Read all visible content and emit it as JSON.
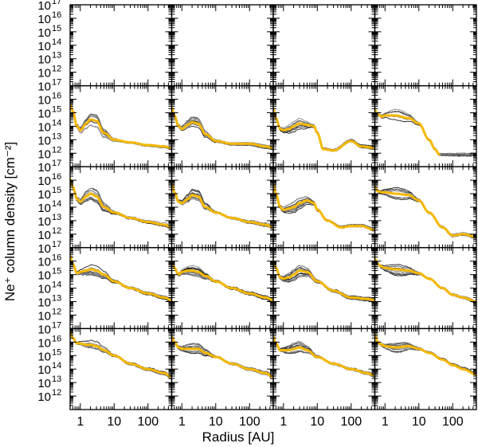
{
  "chart_data": {
    "type": "line",
    "grid": "4 rows x 5 columns of small-multiple panels, shared axes",
    "xlabel": "Radius [AU]",
    "ylabel": "Ne⁺ column density [cm⁻²]",
    "x_scale": "log",
    "y_scale": "log",
    "xlim": [
      0.5,
      500
    ],
    "ylim": [
      100000000000.0,
      1e+17
    ],
    "x_tick_labels": [
      "1",
      "10",
      "100"
    ],
    "x_ticks": [
      1,
      10,
      100
    ],
    "y_tick_labels": [
      "10",
      "10",
      "10",
      "10",
      "10",
      "10"
    ],
    "y_tick_exponents": [
      "12",
      "13",
      "14",
      "15",
      "16",
      "17"
    ],
    "y_ticks": [
      1000000000000.0,
      10000000000000.0,
      100000000000000.0,
      1000000000000000.0,
      1e+16,
      1e+17
    ],
    "colors": {
      "accent": "#f5b800",
      "model_lines": "#333333",
      "frame": "#000000"
    },
    "series_note": "Each panel: ~10 thin dark-gray model curves plus one thick orange reference curve; values are log10(column density)",
    "panel_rows": [
      [
        {
          "empty": true
        },
        {
          "empty": true
        },
        {
          "empty": true
        },
        {
          "empty": true
        }
      ],
      [
        {
          "x": [
            0.5,
            0.6,
            0.8,
            1.0,
            1.5,
            2.0,
            3,
            5,
            10,
            30,
            100,
            300,
            500
          ],
          "orange": [
            15.6,
            15.1,
            14.0,
            13.7,
            14.2,
            14.5,
            14.4,
            13.5,
            13.0,
            12.8,
            12.6,
            12.5,
            12.4
          ]
        },
        {
          "x": [
            0.5,
            0.6,
            0.8,
            1.0,
            1.5,
            2.0,
            3,
            5,
            10,
            30,
            100,
            300,
            500
          ],
          "orange": [
            15.4,
            14.8,
            14.0,
            13.8,
            14.1,
            14.3,
            14.2,
            13.4,
            12.9,
            12.7,
            12.7,
            12.5,
            12.4
          ]
        },
        {
          "x": [
            0.5,
            0.6,
            0.8,
            1.0,
            1.5,
            2,
            3,
            5,
            8,
            10,
            15,
            30,
            100,
            200,
            500
          ],
          "orange": [
            15.3,
            14.6,
            13.8,
            13.7,
            13.8,
            14.0,
            14.2,
            14.1,
            14.0,
            13.5,
            12.3,
            12.2,
            12.9,
            12.5,
            12.4
          ]
        },
        {
          "x": [
            0.5,
            0.6,
            0.8,
            1.0,
            2.0,
            5,
            10,
            20,
            30,
            40
          ],
          "orange": [
            15.2,
            14.9,
            14.7,
            14.8,
            14.8,
            14.6,
            14.2,
            13.0,
            12.3,
            11.9
          ]
        }
      ],
      [
        {
          "x": [
            0.5,
            0.6,
            0.8,
            1.0,
            1.5,
            2.0,
            3,
            5,
            10,
            30,
            100,
            300,
            500
          ],
          "orange": [
            16.1,
            15.5,
            14.6,
            14.4,
            14.8,
            15.0,
            14.8,
            14.0,
            13.6,
            13.2,
            12.9,
            12.7,
            12.5
          ]
        },
        {
          "x": [
            0.5,
            0.6,
            0.8,
            1.0,
            1.5,
            2.0,
            3,
            5,
            10,
            30,
            100,
            300,
            500
          ],
          "orange": [
            15.8,
            15.1,
            14.4,
            14.3,
            14.6,
            14.9,
            14.8,
            14.0,
            13.6,
            13.2,
            12.9,
            12.7,
            12.5
          ]
        },
        {
          "x": [
            0.5,
            0.6,
            0.8,
            1.0,
            1.5,
            2,
            3,
            5,
            8,
            10,
            20,
            50,
            100,
            200,
            500
          ],
          "orange": [
            15.7,
            15.0,
            14.0,
            13.8,
            13.9,
            14.0,
            14.3,
            14.5,
            14.3,
            13.8,
            13.0,
            12.5,
            12.6,
            12.6,
            12.3
          ]
        },
        {
          "x": [
            0.5,
            0.6,
            0.8,
            1.0,
            2,
            5,
            10,
            20,
            50,
            100,
            200,
            500
          ],
          "orange": [
            15.5,
            15.2,
            15.1,
            15.1,
            15.0,
            14.9,
            14.5,
            13.6,
            12.5,
            11.9,
            12.0,
            11.8
          ]
        }
      ],
      [
        {
          "x": [
            0.5,
            0.6,
            0.8,
            1.0,
            1.5,
            2.0,
            3,
            5,
            10,
            30,
            100,
            300,
            500
          ],
          "orange": [
            16.4,
            15.8,
            15.1,
            15.2,
            15.3,
            15.4,
            15.3,
            15.0,
            14.5,
            14.0,
            13.6,
            13.3,
            13.1
          ]
        },
        {
          "x": [
            0.5,
            0.6,
            0.8,
            1.0,
            1.5,
            2.0,
            3,
            5,
            10,
            30,
            100,
            300,
            500
          ],
          "orange": [
            16.0,
            15.5,
            15.0,
            15.2,
            15.3,
            15.3,
            15.2,
            14.9,
            14.5,
            14.0,
            13.6,
            13.3,
            13.1
          ]
        },
        {
          "x": [
            0.5,
            0.6,
            0.8,
            1.0,
            1.5,
            2,
            3,
            5,
            10,
            30,
            100,
            300,
            500
          ],
          "orange": [
            16.0,
            15.5,
            14.8,
            14.7,
            14.8,
            15.0,
            15.3,
            15.2,
            14.5,
            13.8,
            13.3,
            13.2,
            13.1
          ]
        },
        {
          "x": [
            0.5,
            0.6,
            0.8,
            1.0,
            2,
            5,
            10,
            20,
            50,
            100,
            200,
            500
          ],
          "orange": [
            16.2,
            15.8,
            15.6,
            15.5,
            15.4,
            15.3,
            15.1,
            14.7,
            14.0,
            13.5,
            13.3,
            13.0
          ]
        }
      ],
      [
        {
          "x": [
            0.5,
            0.6,
            0.8,
            1.0,
            1.5,
            2.0,
            3,
            5,
            10,
            30,
            100,
            300,
            500
          ],
          "orange": [
            16.8,
            16.3,
            15.9,
            15.9,
            15.8,
            15.8,
            15.7,
            15.4,
            15.0,
            14.4,
            14.0,
            13.7,
            13.4
          ]
        },
        {
          "x": [
            0.5,
            0.6,
            0.8,
            1.0,
            1.5,
            2.0,
            3,
            5,
            10,
            30,
            100,
            300,
            500
          ],
          "orange": [
            16.4,
            16.0,
            15.6,
            15.5,
            15.5,
            15.5,
            15.5,
            15.2,
            14.9,
            14.4,
            14.0,
            13.7,
            13.4
          ]
        },
        {
          "x": [
            0.5,
            0.6,
            0.8,
            1.0,
            1.5,
            2,
            3,
            5,
            10,
            30,
            100,
            300,
            500
          ],
          "orange": [
            16.4,
            15.9,
            15.4,
            15.4,
            15.4,
            15.5,
            15.6,
            15.4,
            14.9,
            14.4,
            14.0,
            13.7,
            13.5
          ]
        },
        {
          "x": [
            0.5,
            0.6,
            0.8,
            1.0,
            2,
            5,
            10,
            20,
            50,
            100,
            200,
            500
          ],
          "orange": [
            16.6,
            16.0,
            15.8,
            15.7,
            15.6,
            15.7,
            15.5,
            15.2,
            14.7,
            14.3,
            14.0,
            13.6
          ]
        }
      ]
    ]
  }
}
